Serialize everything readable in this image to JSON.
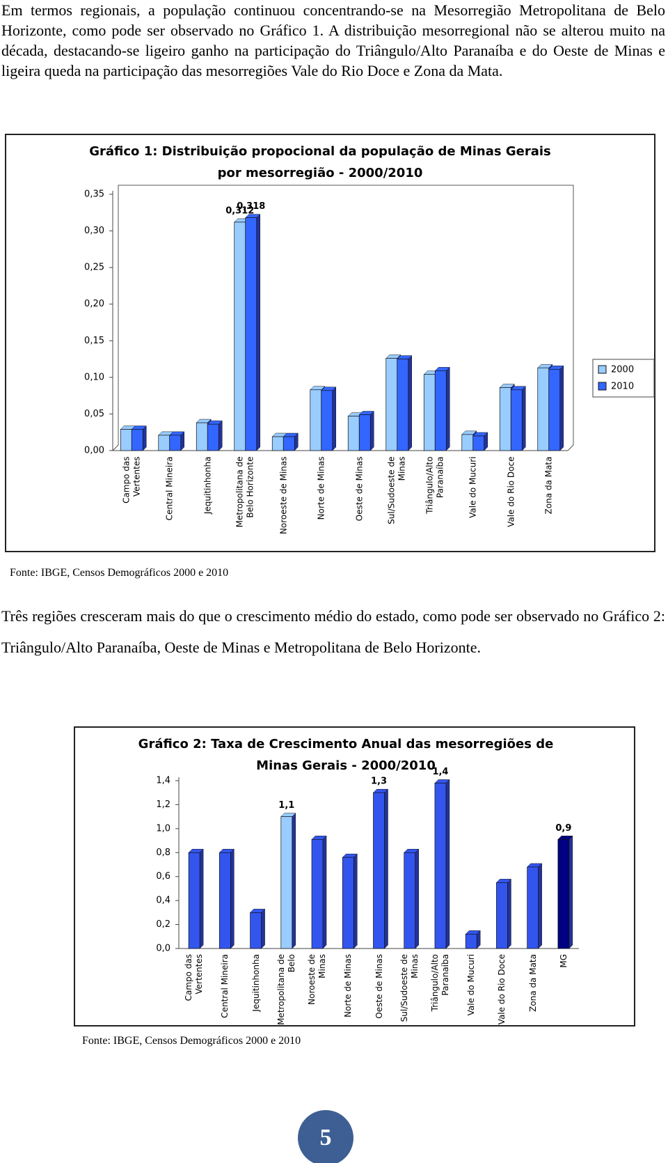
{
  "paragraphs": [
    "Em termos regionais, a população continuou concentrando-se na Mesorregião Metropolitana de Belo Horizonte, como pode ser observado no Gráfico 1. A distribuição mesorregional não se alterou muito na década, destacando-se ligeiro ganho na participação do Triângulo/Alto Paranaíba e do Oeste de Minas e ligeira queda na participação das mesorregiões Vale do Rio Doce e Zona da Mata.",
    "Três regiões cresceram mais do que o crescimento médio do estado, como pode ser observado no Gráfico 2: Triângulo/Alto Paranaíba, Oeste de Minas e Metropolitana de Belo Horizonte."
  ],
  "chart_data": [
    {
      "type": "bar",
      "title": "Gráfico 1: Distribuição propocional da população de Minas Gerais por mesorregião - 2000/2010",
      "categories": [
        "Campo das Vertentes",
        "Central Mineira",
        "Jequitinhonha",
        "Metropolitana de Belo Horizonte",
        "Noroeste de Minas",
        "Norte de Minas",
        "Oeste de Minas",
        "Sul/Sudoeste de Minas",
        "Triângulo/Alto Paranaíba",
        "Vale do Mucuri",
        "Vale do Rio Doce",
        "Zona da Mata"
      ],
      "series": [
        {
          "name": "2000",
          "color": "#99ccff",
          "values": [
            0.029,
            0.021,
            0.038,
            0.312,
            0.019,
            0.083,
            0.047,
            0.126,
            0.104,
            0.022,
            0.086,
            0.113
          ],
          "value_labels": [
            null,
            null,
            null,
            "0,312",
            null,
            null,
            null,
            null,
            null,
            null,
            null,
            null
          ]
        },
        {
          "name": "2010",
          "color": "#3366ff",
          "values": [
            0.029,
            0.021,
            0.036,
            0.318,
            0.019,
            0.082,
            0.049,
            0.125,
            0.109,
            0.02,
            0.083,
            0.111
          ],
          "value_labels": [
            null,
            null,
            null,
            "0,318",
            null,
            null,
            null,
            null,
            null,
            null,
            null,
            null
          ]
        }
      ],
      "ylim": [
        0,
        0.35
      ],
      "yticks": [
        {
          "value": 0,
          "label": "0,00"
        },
        {
          "value": 0.05,
          "label": "0,05"
        },
        {
          "value": 0.1,
          "label": "0,10"
        },
        {
          "value": 0.15,
          "label": "0,15"
        },
        {
          "value": 0.2,
          "label": "0,20"
        },
        {
          "value": 0.25,
          "label": "0,25"
        },
        {
          "value": 0.3,
          "label": "0,30"
        },
        {
          "value": 0.35,
          "label": "0,35"
        }
      ],
      "grid": false,
      "legend": "right"
    },
    {
      "type": "bar",
      "title": "Gráfico 2: Taxa de Crescimento Anual das mesorregiões de Minas Gerais - 2000/2010",
      "categories": [
        "Campo das Vertentes",
        "Central Mineira",
        "Jequitinhonha",
        "Metropolitana de Belo",
        "Noroeste de Minas",
        "Norte de Minas",
        "Oeste de Minas",
        "Sul/Sudoeste de Minas",
        "Triângulo/Alto Paranaíba",
        "Vale do Mucuri",
        "Vale do Rio Doce",
        "Zona da Mata",
        "MG"
      ],
      "values": [
        0.8,
        0.8,
        0.3,
        1.1,
        0.91,
        0.76,
        1.3,
        0.8,
        1.38,
        0.12,
        0.55,
        0.68,
        0.91
      ],
      "value_labels": [
        null,
        null,
        null,
        "1,1",
        null,
        null,
        "1,3",
        null,
        "1,4",
        null,
        null,
        null,
        "0,9"
      ],
      "colors": [
        "#3355ee",
        "#3355ee",
        "#3355ee",
        "#99ccff",
        "#3355ee",
        "#3355ee",
        "#3355ee",
        "#3355ee",
        "#3355ee",
        "#3355ee",
        "#3355ee",
        "#3355ee",
        "#000080"
      ],
      "ylim": [
        0,
        1.4
      ],
      "yticks": [
        {
          "value": 0,
          "label": "0,0"
        },
        {
          "value": 0.2,
          "label": "0,2"
        },
        {
          "value": 0.4,
          "label": "0,4"
        },
        {
          "value": 0.6,
          "label": "0,6"
        },
        {
          "value": 0.8,
          "label": "0,8"
        },
        {
          "value": 1.0,
          "label": "1,0"
        },
        {
          "value": 1.2,
          "label": "1,2"
        },
        {
          "value": 1.4,
          "label": "1,4"
        }
      ],
      "grid": false
    }
  ],
  "sources": [
    "Fonte: IBGE, Censos Demográficos 2000 e 2010",
    "Fonte: IBGE, Censos Demográficos 2000 e 2010"
  ],
  "page_number": 5
}
